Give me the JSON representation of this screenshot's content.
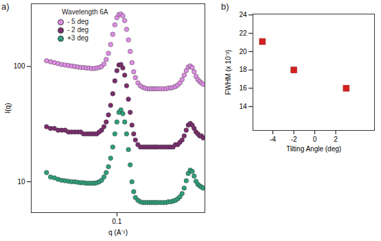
{
  "chart_data": [
    {
      "type": "scatter",
      "title": "a)",
      "x_label": "q (A⁻¹)",
      "y_label": "I(q)",
      "log": true,
      "legend": "top-left",
      "legend_title": "Wavelength 6A",
      "marker": "circle",
      "xlim": [
        0.043,
        0.238
      ],
      "xticks": [
        0.1
      ],
      "ylim": [
        5.4,
        350
      ],
      "yticks": [
        10,
        100
      ],
      "x": [
        0.05,
        0.052,
        0.054,
        0.056,
        0.058,
        0.06,
        0.062,
        0.064,
        0.066,
        0.068,
        0.07,
        0.072,
        0.074,
        0.076,
        0.078,
        0.08,
        0.082,
        0.084,
        0.086,
        0.088,
        0.09,
        0.092,
        0.094,
        0.096,
        0.098,
        0.1,
        0.102,
        0.104,
        0.106,
        0.108,
        0.11,
        0.112,
        0.114,
        0.116,
        0.118,
        0.12,
        0.123,
        0.126,
        0.129,
        0.132,
        0.135,
        0.138,
        0.141,
        0.144,
        0.147,
        0.15,
        0.154,
        0.158,
        0.162,
        0.166,
        0.17,
        0.174,
        0.178,
        0.182,
        0.186,
        0.19,
        0.194,
        0.198,
        0.202,
        0.206,
        0.21,
        0.214,
        0.218,
        0.222,
        0.226,
        0.23,
        0.234
      ],
      "series": [
        {
          "name": "- 5 deg",
          "color": "#e08ee6",
          "values": [
            112,
            110,
            108,
            106,
            104,
            103,
            102,
            101,
            100,
            99,
            98,
            98,
            97,
            97,
            96,
            96,
            97,
            98,
            100,
            105,
            115,
            130,
            155,
            190,
            230,
            265,
            282,
            285,
            275,
            250,
            210,
            170,
            135,
            108,
            90,
            80,
            72,
            68,
            66,
            65,
            64,
            64,
            64,
            64,
            64,
            64,
            64,
            64,
            64,
            65,
            65,
            66,
            67,
            69,
            72,
            77,
            84,
            92,
            99,
            101,
            98,
            90,
            82,
            77,
            74,
            72,
            70
          ]
        },
        {
          "name": "- 2 deg",
          "color": "#7b2d6e",
          "values": [
            30,
            29,
            29,
            28,
            28,
            28,
            27,
            27,
            27,
            27,
            27,
            26,
            26,
            26,
            26,
            26,
            26,
            27,
            28,
            30,
            33,
            38,
            46,
            58,
            75,
            92,
            103,
            104,
            97,
            84,
            68,
            52,
            40,
            31,
            26,
            23,
            21,
            20,
            20,
            20,
            20,
            20,
            20,
            20,
            20,
            20,
            20,
            20,
            20,
            20,
            20,
            20,
            21,
            21,
            22,
            23,
            25,
            28,
            31,
            32,
            31,
            29,
            27,
            26,
            25,
            25,
            24
          ]
        },
        {
          "name": "+3 deg",
          "color": "#2f9e7c",
          "values": [
            12,
            11,
            10.8,
            10.5,
            10.3,
            10.2,
            10.1,
            10,
            10,
            9.9,
            9.8,
            9.8,
            9.7,
            9.7,
            9.7,
            9.7,
            9.8,
            10,
            10.3,
            11,
            12,
            13.5,
            16,
            20,
            26,
            33,
            40,
            42,
            39,
            33,
            26,
            19,
            14,
            10,
            8.2,
            7.3,
            6.9,
            6.7,
            6.6,
            6.6,
            6.6,
            6.6,
            6.6,
            6.6,
            6.6,
            6.6,
            6.6,
            6.6,
            6.6,
            6.7,
            6.7,
            6.8,
            6.9,
            7.1,
            7.4,
            7.9,
            8.8,
            10.2,
            11.8,
            12.6,
            12.3,
            11.2,
            10.1,
            9.5,
            9.2,
            9,
            8.8
          ]
        }
      ]
    },
    {
      "type": "scatter",
      "title": "b)",
      "x_label": "Tilting Angle (deg)",
      "y_label": "FWHM (x 10⁻³)",
      "marker": "square",
      "color": "#d62020",
      "xlim": [
        -5.9,
        5.7
      ],
      "xticks": [
        -4,
        -2,
        0,
        2
      ],
      "ylim": [
        11.4,
        24.1
      ],
      "yticks": [
        14,
        16,
        18,
        20,
        22,
        24
      ],
      "x": [
        -5,
        -2,
        3
      ],
      "values": [
        21.1,
        18.0,
        16.0
      ]
    }
  ]
}
